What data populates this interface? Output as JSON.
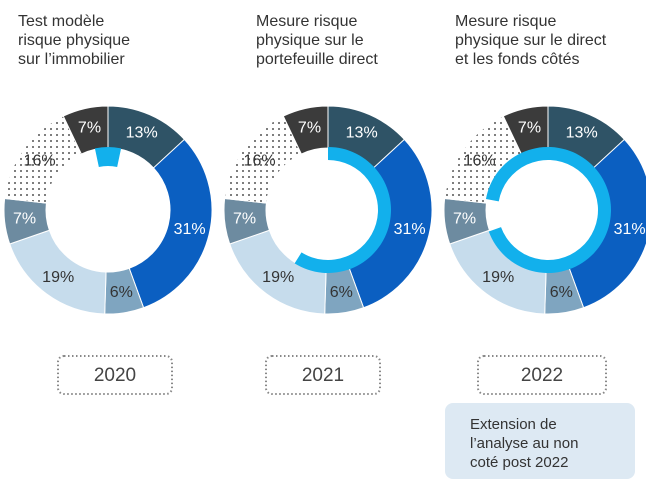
{
  "chart_data": [
    {
      "type": "pie",
      "title": [
        "Test modèle",
        "risque physique",
        "sur l’immobilier"
      ],
      "year": "2020",
      "values": [
        13,
        31,
        6,
        19,
        7,
        16,
        7
      ],
      "value_labels": [
        "13%",
        "31%",
        "6%",
        "19%",
        "7%",
        "16%",
        "7%"
      ],
      "colors": [
        "#2f5366",
        "#0b5fc1",
        "#7fa5c0",
        "#c6dcec",
        "#6d8ba0",
        "dots",
        "#3b3b3b"
      ]
    },
    {
      "type": "pie",
      "title": [
        "Mesure risque",
        "physique sur le",
        "portefeuille direct"
      ],
      "year": "2021",
      "values": [
        13,
        31,
        6,
        19,
        7,
        16,
        7
      ],
      "value_labels": [
        "13%",
        "31%",
        "6%",
        "19%",
        "7%",
        "16%",
        "7%"
      ],
      "colors": [
        "#2f5366",
        "#0b5fc1",
        "#7fa5c0",
        "#c6dcec",
        "#6d8ba0",
        "dots",
        "#3b3b3b"
      ]
    },
    {
      "type": "pie",
      "title": [
        "Mesure risque",
        "physique sur le direct",
        "et les fonds côtés"
      ],
      "year": "2022",
      "values": [
        13,
        31,
        6,
        19,
        7,
        16,
        7
      ],
      "value_labels": [
        "13%",
        "31%",
        "6%",
        "19%",
        "7%",
        "16%",
        "7%"
      ],
      "colors": [
        "#2f5366",
        "#0b5fc1",
        "#7fa5c0",
        "#c6dcec",
        "#6d8ba0",
        "dots",
        "#3b3b3b"
      ]
    }
  ],
  "note": [
    "Extension de",
    "l’analyse au non",
    "coté post 2022"
  ]
}
